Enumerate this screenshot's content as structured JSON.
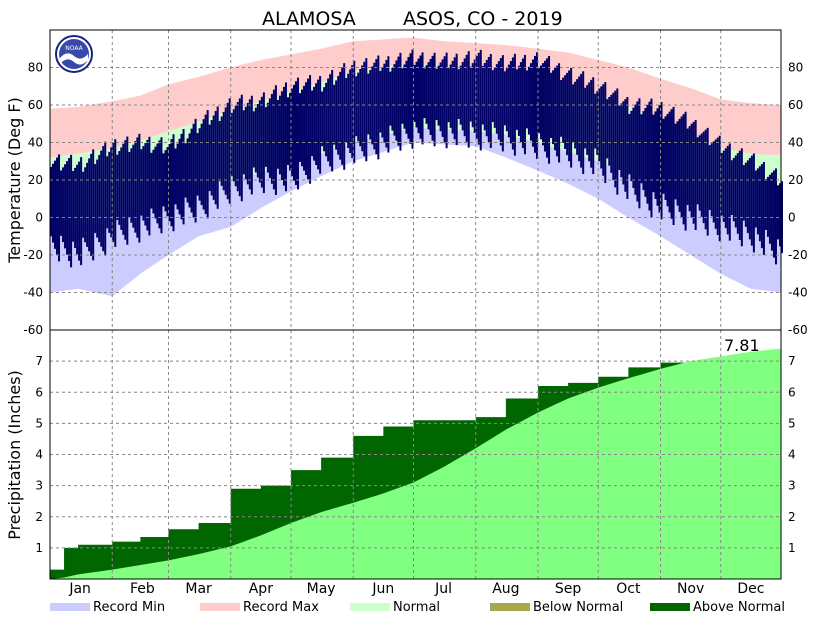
{
  "chart_data": [
    {
      "type": "area",
      "panel": "temperature",
      "title_station": "ALAMOSA",
      "title_rest": "ASOS, CO - 2019",
      "ylabel": "Temperature (Deg F)",
      "ylim": [
        -60,
        100
      ],
      "yticks": [
        -60,
        -40,
        -20,
        0,
        20,
        40,
        60,
        80
      ],
      "grid": true,
      "x_days": [
        1,
        15,
        32,
        46,
        60,
        75,
        91,
        106,
        121,
        136,
        152,
        167,
        182,
        197,
        213,
        228,
        244,
        259,
        274,
        289,
        305,
        320,
        335,
        350,
        365
      ],
      "series": [
        {
          "name": "Record Max",
          "color": "#ffcccc",
          "values": [
            58,
            59,
            62,
            65,
            71,
            75,
            80,
            84,
            87,
            90,
            94,
            95,
            96,
            94,
            93,
            92,
            90,
            88,
            84,
            80,
            74,
            69,
            63,
            61,
            60
          ]
        },
        {
          "name": "Normal",
          "color": "#ccffcc",
          "values": [
            [
              -6,
              32
            ],
            [
              -5,
              34
            ],
            [
              0,
              37
            ],
            [
              5,
              41
            ],
            [
              12,
              46
            ],
            [
              16,
              51
            ],
            [
              20,
              57
            ],
            [
              24,
              62
            ],
            [
              29,
              67
            ],
            [
              34,
              72
            ],
            [
              40,
              78
            ],
            [
              44,
              80
            ],
            [
              48,
              82
            ],
            [
              47,
              81
            ],
            [
              46,
              80
            ],
            [
              44,
              78
            ],
            [
              40,
              74
            ],
            [
              35,
              70
            ],
            [
              30,
              65
            ],
            [
              23,
              59
            ],
            [
              17,
              52
            ],
            [
              10,
              45
            ],
            [
              3,
              37
            ],
            [
              -2,
              34
            ],
            [
              -4,
              33
            ]
          ]
        },
        {
          "name": "Record Min",
          "color": "#ccccff",
          "values": [
            -40,
            -38,
            -42,
            -30,
            -20,
            -10,
            -5,
            5,
            14,
            22,
            30,
            35,
            40,
            39,
            38,
            32,
            25,
            18,
            10,
            0,
            -10,
            -20,
            -30,
            -38,
            -40
          ]
        },
        {
          "name": "Observed",
          "color": "#000066",
          "values": [
            [
              -15,
              30
            ],
            [
              -20,
              28
            ],
            [
              -10,
              38
            ],
            [
              -5,
              40
            ],
            [
              0,
              38
            ],
            [
              5,
              50
            ],
            [
              15,
              60
            ],
            [
              20,
              62
            ],
            [
              20,
              70
            ],
            [
              30,
              72
            ],
            [
              35,
              80
            ],
            [
              40,
              82
            ],
            [
              45,
              85
            ],
            [
              45,
              83
            ],
            [
              44,
              85
            ],
            [
              42,
              82
            ],
            [
              38,
              84
            ],
            [
              34,
              76
            ],
            [
              28,
              70
            ],
            [
              15,
              60
            ],
            [
              5,
              58
            ],
            [
              0,
              50
            ],
            [
              -5,
              38
            ],
            [
              -10,
              30
            ],
            [
              -20,
              20
            ]
          ]
        }
      ]
    },
    {
      "type": "area",
      "panel": "precipitation",
      "ylabel": "Precipitation (Inches)",
      "ylim": [
        0,
        8
      ],
      "yticks": [
        1,
        2,
        3,
        4,
        5,
        6,
        7
      ],
      "grid": true,
      "total_label": "7.81",
      "x_days": [
        1,
        8,
        15,
        32,
        46,
        60,
        75,
        91,
        106,
        121,
        136,
        152,
        167,
        182,
        197,
        213,
        228,
        244,
        259,
        274,
        289,
        305,
        320,
        335,
        350,
        365
      ],
      "series": [
        {
          "name": "Normal",
          "color": "#80ff80",
          "values": [
            0.0,
            0.05,
            0.15,
            0.3,
            0.45,
            0.6,
            0.8,
            1.05,
            1.4,
            1.8,
            2.15,
            2.45,
            2.75,
            3.1,
            3.6,
            4.2,
            4.8,
            5.35,
            5.8,
            6.15,
            6.45,
            6.75,
            7.0,
            7.15,
            7.3,
            7.4
          ]
        },
        {
          "name": "Observed",
          "color": "#006600",
          "values": [
            0.3,
            1.0,
            1.1,
            1.2,
            1.35,
            1.6,
            1.8,
            2.9,
            3.0,
            3.5,
            3.9,
            4.6,
            4.9,
            5.1,
            5.1,
            5.2,
            5.8,
            6.2,
            6.3,
            6.5,
            6.8,
            6.95,
            7.0,
            7.0,
            7.2,
            7.81
          ]
        }
      ]
    }
  ],
  "months": [
    "Jan",
    "Feb",
    "Mar",
    "Apr",
    "May",
    "Jun",
    "Jul",
    "Aug",
    "Sep",
    "Oct",
    "Nov",
    "Dec"
  ],
  "legend": [
    {
      "label": "Record Min",
      "color": "#ccccff"
    },
    {
      "label": "Record Max",
      "color": "#ffcccc"
    },
    {
      "label": "Normal",
      "color": "#ccffcc"
    },
    {
      "label": "Below Normal",
      "color": "#a8a850"
    },
    {
      "label": "Above Normal",
      "color": "#006600"
    }
  ],
  "logo_text": "NOAA"
}
